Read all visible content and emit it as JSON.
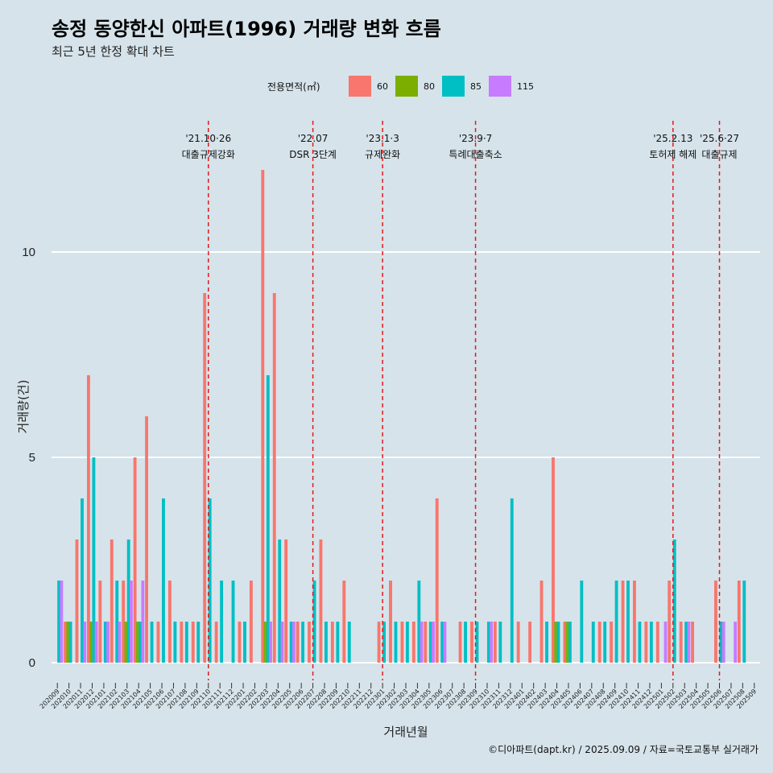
{
  "chart_data": {
    "type": "bar",
    "title": "송정 동양한신 아파트(1996) 거래량 변화 흐름",
    "subtitle": "최근 5년 한정 확대 차트",
    "xlabel": "거래년월",
    "ylabel": "거래량(건)",
    "ylim": [
      0,
      12.5
    ],
    "yticks": [
      0,
      5,
      10
    ],
    "legend_title": "전용면적(㎡)",
    "legend_position": "top",
    "grid": true,
    "caption": "©디아파트(dapt.kr) / 2025.09.09 / 자료=국토교통부 실거래가",
    "categories": [
      "202009",
      "202010",
      "202011",
      "202012",
      "202101",
      "202102",
      "202103",
      "202104",
      "202105",
      "202106",
      "202107",
      "202108",
      "202109",
      "202110",
      "202111",
      "202112",
      "202201",
      "202202",
      "202203",
      "202204",
      "202205",
      "202206",
      "202207",
      "202208",
      "202209",
      "202210",
      "202211",
      "202212",
      "202301",
      "202302",
      "202303",
      "202304",
      "202305",
      "202306",
      "202307",
      "202308",
      "202309",
      "202310",
      "202311",
      "202312",
      "202401",
      "202402",
      "202403",
      "202404",
      "202405",
      "202406",
      "202407",
      "202408",
      "202409",
      "202410",
      "202411",
      "202412",
      "202501",
      "202502",
      "202503",
      "202504",
      "202505",
      "202506",
      "202507",
      "202508",
      "202509"
    ],
    "series": [
      {
        "name": "60",
        "color": "#f8766d",
        "values": [
          0,
          1,
          3,
          7,
          2,
          3,
          2,
          5,
          6,
          1,
          2,
          1,
          1,
          9,
          1,
          0,
          1,
          2,
          12,
          9,
          3,
          1,
          1,
          3,
          1,
          2,
          0,
          0,
          1,
          2,
          1,
          1,
          1,
          4,
          0,
          1,
          1,
          0,
          1,
          0,
          1,
          1,
          2,
          5,
          1,
          0,
          0,
          1,
          1,
          2,
          2,
          1,
          1,
          2,
          1,
          1,
          0,
          2,
          0,
          2,
          0
        ]
      },
      {
        "name": "80",
        "color": "#7cae00",
        "values": [
          0,
          1,
          0,
          1,
          0,
          0,
          1,
          1,
          0,
          0,
          0,
          0,
          0,
          0,
          0,
          0,
          0,
          0,
          1,
          0,
          0,
          0,
          0,
          0,
          0,
          0,
          0,
          0,
          0,
          0,
          0,
          0,
          0,
          0,
          0,
          0,
          0,
          0,
          0,
          0,
          0,
          0,
          0,
          1,
          1,
          0,
          0,
          0,
          0,
          0,
          0,
          0,
          0,
          0,
          0,
          0,
          0,
          0,
          0,
          0,
          0
        ]
      },
      {
        "name": "85",
        "color": "#00bfc4",
        "values": [
          2,
          1,
          4,
          5,
          1,
          2,
          3,
          1,
          1,
          4,
          1,
          1,
          1,
          4,
          2,
          2,
          1,
          0,
          7,
          3,
          1,
          1,
          2,
          1,
          1,
          1,
          0,
          0,
          1,
          1,
          1,
          2,
          1,
          1,
          0,
          1,
          1,
          1,
          1,
          4,
          0,
          0,
          1,
          1,
          1,
          2,
          1,
          1,
          2,
          2,
          1,
          1,
          0,
          3,
          1,
          0,
          0,
          1,
          0,
          2,
          0
        ]
      },
      {
        "name": "115",
        "color": "#c77cff",
        "values": [
          2,
          0,
          1,
          1,
          1,
          1,
          2,
          2,
          0,
          0,
          0,
          0,
          0,
          0,
          0,
          0,
          0,
          0,
          1,
          1,
          1,
          0,
          0,
          0,
          0,
          0,
          0,
          0,
          0,
          0,
          0,
          1,
          1,
          1,
          0,
          0,
          0,
          1,
          0,
          0,
          0,
          0,
          0,
          0,
          0,
          0,
          0,
          0,
          0,
          0,
          0,
          0,
          1,
          0,
          1,
          0,
          0,
          1,
          1,
          0,
          0
        ]
      }
    ],
    "events": [
      {
        "date": "'21.10·26",
        "label": "대출규제강화",
        "index": 13
      },
      {
        "date": "'22.07",
        "label": "DSR 3단계",
        "index": 22
      },
      {
        "date": "'23.1·3",
        "label": "규제완화",
        "index": 28
      },
      {
        "date": "'23.9·7",
        "label": "특례대출축소",
        "index": 36
      },
      {
        "date": "'25.2.13",
        "label": "토허제 해제",
        "index": 53
      },
      {
        "date": "'25.6·27",
        "label": "대출규제",
        "index": 57
      }
    ]
  }
}
